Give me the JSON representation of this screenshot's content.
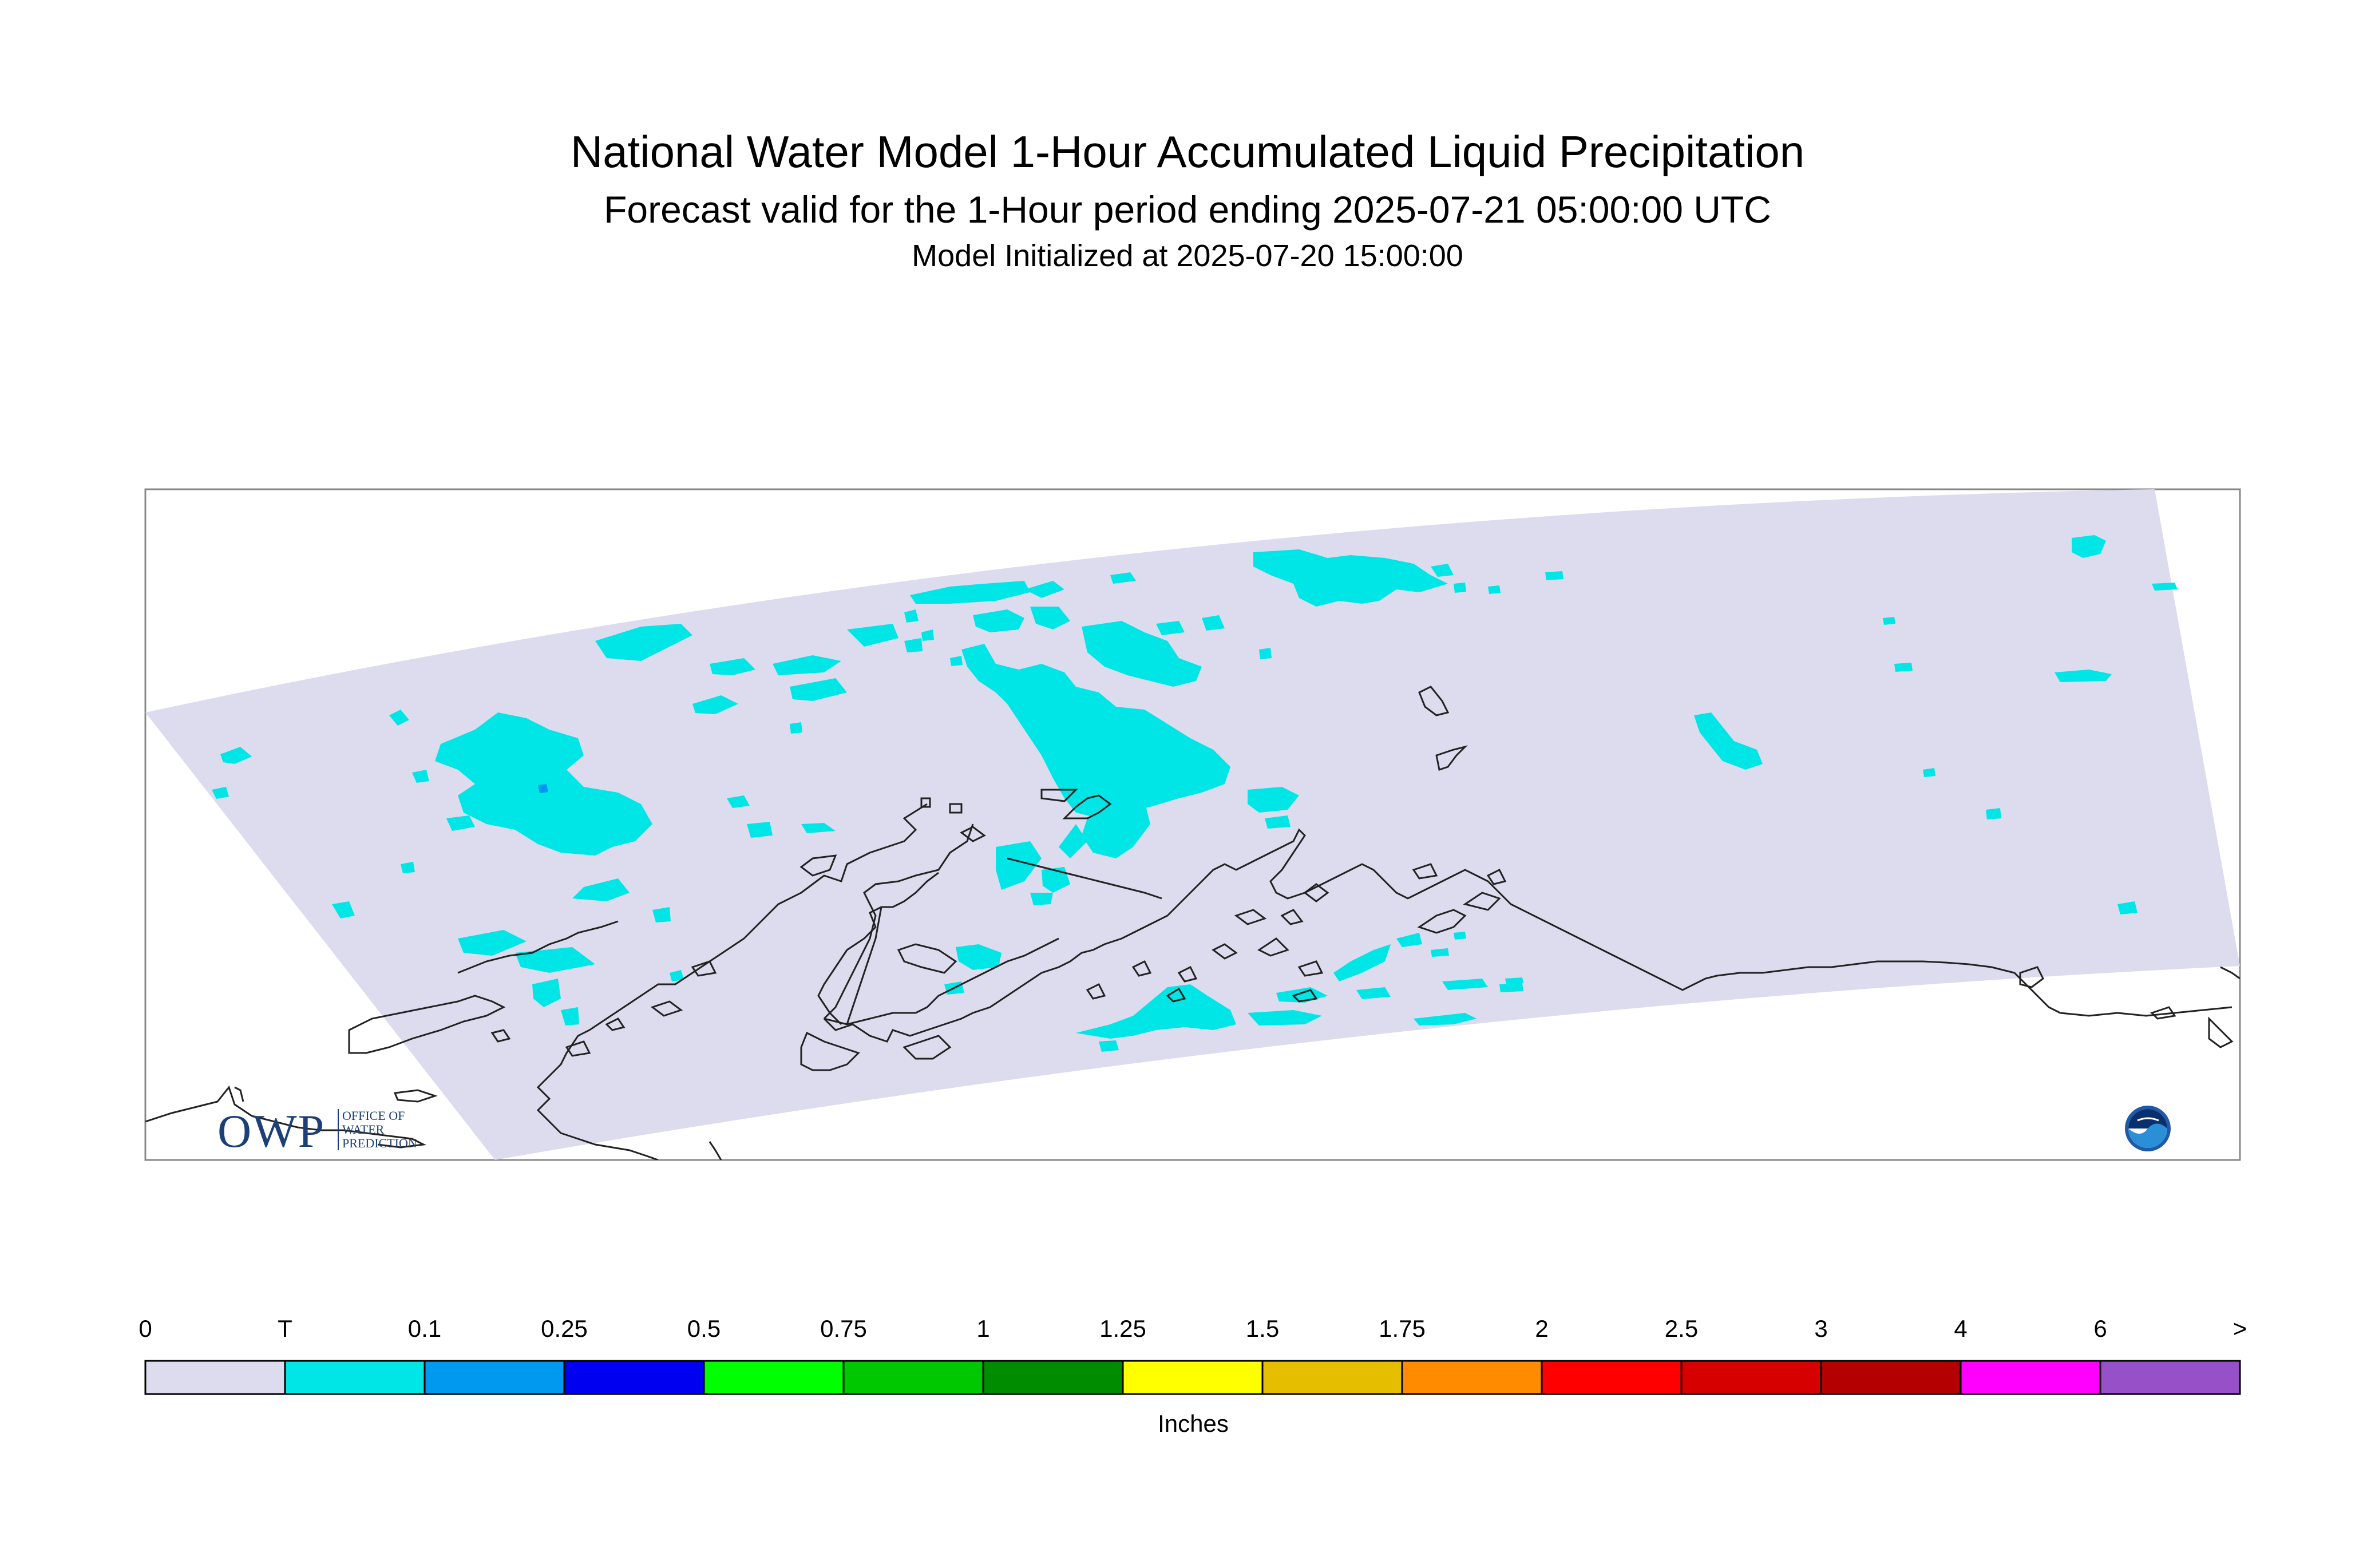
{
  "header": {
    "title": "National Water Model 1-Hour Accumulated Liquid Precipitation",
    "subtitle": "Forecast valid for the 1-Hour period ending 2025-07-21 05:00:00 UTC",
    "init_line": "Model Initialized at 2025-07-20 15:00:00"
  },
  "logos": {
    "owp_text": "OWP",
    "owp_sub": "OFFICE OF\nWATER\nPREDICTION",
    "noaa_icon": "noaa-logo-icon"
  },
  "legend": {
    "units": "Inches",
    "labels": [
      "0",
      "T",
      "0.1",
      "0.25",
      "0.5",
      "0.75",
      "1",
      "1.25",
      "1.5",
      "1.75",
      "2",
      "2.5",
      "3",
      "4",
      "6",
      ">"
    ],
    "colors": [
      "#dcdcee",
      "#00e6e6",
      "#0099f0",
      "#0000f0",
      "#00ff00",
      "#00c800",
      "#008c00",
      "#ffff00",
      "#e6be00",
      "#ff8c00",
      "#ff0000",
      "#d70000",
      "#b40000",
      "#ff00ff",
      "#9650c8"
    ]
  },
  "map": {
    "domain_color": "#dcdcee",
    "precip_color": "#00e6e6",
    "heavier_color": "#0099f0",
    "coast_color": "#222222"
  }
}
